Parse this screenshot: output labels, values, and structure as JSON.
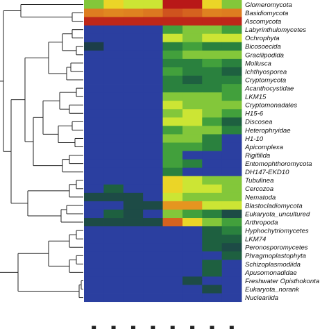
{
  "chart_data": {
    "type": "heatmap",
    "title": "",
    "xlabel": "",
    "ylabel": "",
    "rows": [
      "Glomeromycota",
      "Basidiomycota",
      "Ascomycota",
      "Labyrinthulomycetes",
      "Ochrophyta",
      "Bicosoecida",
      "Gracilipodida",
      "Mollusca",
      "Ichthyosporea",
      "Cryptomycota",
      "Acanthocystidae",
      "LKM15",
      "Cryptomonadales",
      "H15-6",
      "Discosea",
      "Heterophryidae",
      "H1-10",
      "Apicomplexa",
      "Rigifilida",
      "Entomophthoromycota",
      "DH147-EKD10",
      "Tubulinea",
      "Cercozoa",
      "Nematoda",
      "Blastocladiomycota",
      "Eukaryota_uncultured",
      "Arthropoda",
      "Hyphochytriomycetes",
      "LKM74",
      "Peronosporomycetes",
      "Phragmoplastophyta",
      "Schizoplasmodiida",
      "Apusomonadidae",
      "Freshwater Opisthokonta",
      "Eukaryota_norank",
      "Nucleariida"
    ],
    "column_count": 8,
    "value_scale": [
      0,
      10
    ],
    "values": [
      [
        5,
        7,
        6,
        6,
        10,
        10,
        7,
        5
      ],
      [
        8.5,
        8.3,
        8.4,
        8.6,
        9.2,
        9.0,
        8.4,
        8.5
      ],
      [
        9.8,
        9.8,
        9.8,
        9.8,
        9.8,
        9.8,
        9.8,
        9.8
      ],
      [
        0,
        0,
        0,
        0,
        4,
        5,
        5,
        4
      ],
      [
        0,
        0,
        0,
        0,
        6,
        5,
        6,
        6
      ],
      [
        1.2,
        0,
        0,
        0,
        3,
        4,
        3,
        3
      ],
      [
        0,
        0,
        0,
        0,
        4,
        5,
        5,
        5
      ],
      [
        0,
        0,
        0,
        0,
        3,
        3,
        4,
        3
      ],
      [
        0,
        0,
        0,
        0,
        4,
        3,
        3,
        2
      ],
      [
        0,
        0,
        0,
        0,
        3,
        2,
        3,
        3
      ],
      [
        0,
        0,
        0,
        0,
        3,
        3,
        3,
        4
      ],
      [
        0,
        0,
        0,
        0,
        5,
        5,
        5,
        4
      ],
      [
        0,
        0,
        0,
        0,
        6,
        5,
        5,
        5
      ],
      [
        0,
        0,
        0,
        0,
        5,
        6,
        5,
        4
      ],
      [
        0,
        0,
        0,
        0,
        6,
        6,
        4,
        2
      ],
      [
        0,
        0,
        0,
        0,
        4,
        5,
        5,
        3
      ],
      [
        0,
        0,
        0,
        0,
        5,
        5,
        3,
        0
      ],
      [
        0,
        0,
        0,
        0,
        4,
        4,
        3,
        0
      ],
      [
        0,
        0,
        0,
        0,
        4,
        0,
        0,
        0
      ],
      [
        0,
        0,
        0,
        0,
        4,
        3,
        0,
        0
      ],
      [
        0,
        0,
        0,
        0,
        3,
        0,
        0,
        0
      ],
      [
        0,
        0,
        0,
        0,
        7,
        6,
        5,
        5
      ],
      [
        0,
        2,
        0,
        0,
        7,
        6,
        6,
        5
      ],
      [
        1.5,
        1.5,
        1.5,
        0,
        6,
        5,
        5,
        5
      ],
      [
        0,
        0,
        1.5,
        1.5,
        8,
        8,
        6,
        6
      ],
      [
        0,
        2,
        1.5,
        0,
        5,
        4,
        3,
        1.5
      ],
      [
        1.5,
        1.5,
        1.5,
        1.5,
        9,
        7,
        5,
        4
      ],
      [
        0,
        0,
        0,
        0,
        0,
        0,
        2,
        3
      ],
      [
        0,
        0,
        0,
        0,
        0,
        0,
        2,
        2
      ],
      [
        0,
        0,
        0,
        0,
        0,
        0,
        2,
        1.5
      ],
      [
        0,
        0,
        0,
        0,
        0,
        0,
        0,
        2
      ],
      [
        0,
        0,
        0,
        0,
        0,
        0,
        2,
        0
      ],
      [
        0,
        0,
        0,
        0,
        0,
        0,
        2,
        0
      ],
      [
        0,
        0,
        0,
        0,
        0,
        1.5,
        0,
        0
      ],
      [
        0,
        0,
        0,
        0,
        0,
        0,
        1.5,
        0
      ],
      [
        0,
        0,
        0,
        0,
        0,
        0,
        0,
        0
      ]
    ],
    "color_scale": [
      "#2b3fa0",
      "#1c3a4a",
      "#1f6a3e",
      "#2e8b3e",
      "#4fae3a",
      "#b6e03a",
      "#ecec2a",
      "#e8a020",
      "#d86a20",
      "#b81818"
    ],
    "legend": "none",
    "grid": false
  }
}
